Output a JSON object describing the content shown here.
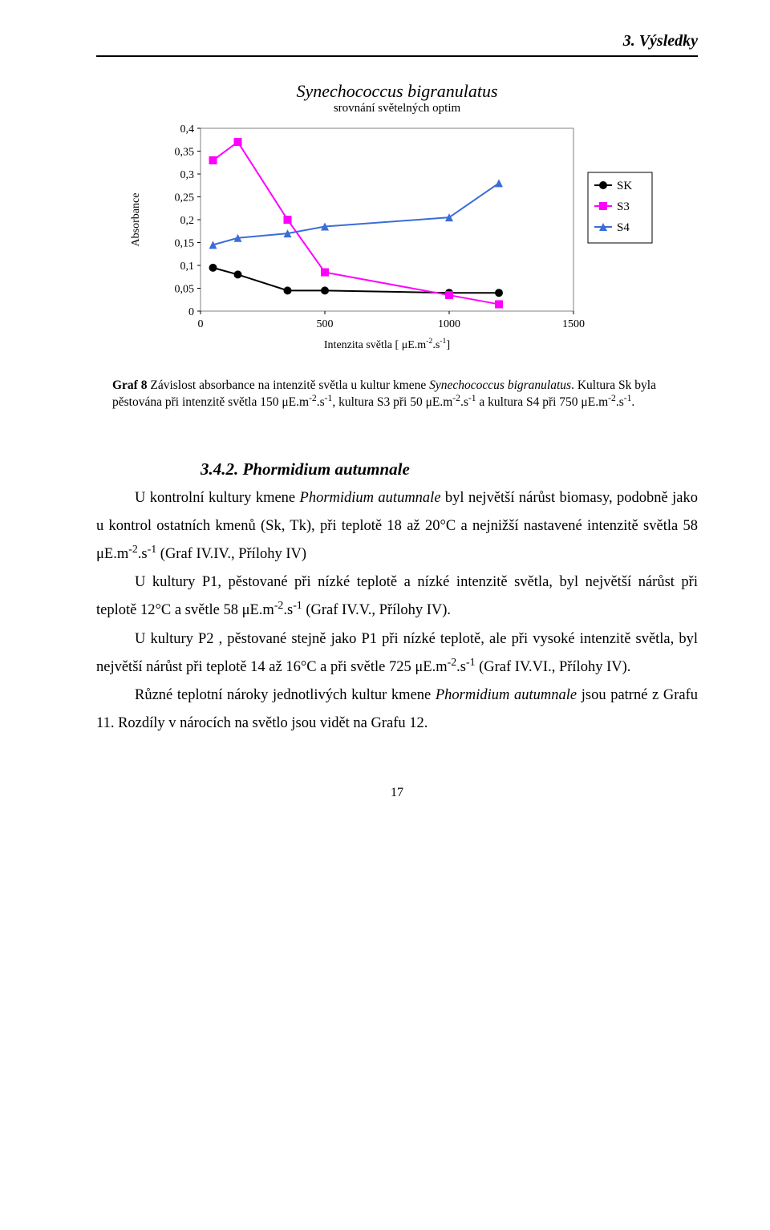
{
  "header": {
    "section": "3. Výsledky"
  },
  "chart": {
    "type": "line-scatter",
    "title": "Synechococcus bigranulatus",
    "subtitle": "srovnání světelných optim",
    "y_label": "Absorbance",
    "x_label_prefix": "Intenzita světla [ ",
    "x_label_unit": "μE.m",
    "x_label_sup": "-2",
    "x_label_unit2": ".s",
    "x_label_sup2": "-1",
    "x_label_suffix": "]",
    "xlim": [
      0,
      1500
    ],
    "ylim": [
      0,
      0.4
    ],
    "xtick_labels": [
      "0",
      "500",
      "1000",
      "1500"
    ],
    "xtick_vals": [
      0,
      500,
      1000,
      1500
    ],
    "ytick_labels": [
      "0",
      "0,05",
      "0,1",
      "0,15",
      "0,2",
      "0,25",
      "0,3",
      "0,35",
      "0,4"
    ],
    "ytick_vals": [
      0,
      0.05,
      0.1,
      0.15,
      0.2,
      0.25,
      0.3,
      0.35,
      0.4
    ],
    "background": "#ffffff",
    "border_color": "#808080",
    "plot_border_color": "#808080",
    "tick_font_size": 14,
    "axis_font_size": 14,
    "series": [
      {
        "name": "SK",
        "marker": "circle",
        "color": "#000000",
        "line_width": 2,
        "x": [
          50,
          150,
          350,
          500,
          1000,
          1200
        ],
        "y": [
          0.095,
          0.08,
          0.045,
          0.045,
          0.04,
          0.04
        ]
      },
      {
        "name": "S3",
        "marker": "square",
        "color": "#ff00ff",
        "line_width": 2,
        "x": [
          50,
          150,
          350,
          500,
          1000,
          1200
        ],
        "y": [
          0.33,
          0.37,
          0.2,
          0.085,
          0.035,
          0.015
        ]
      },
      {
        "name": "S4",
        "marker": "triangle",
        "color": "#3a6dd8",
        "line_width": 2,
        "x": [
          50,
          150,
          350,
          500,
          1000,
          1200
        ],
        "y": [
          0.145,
          0.16,
          0.17,
          0.185,
          0.205,
          0.28
        ]
      }
    ],
    "legend": {
      "items": [
        "SK",
        "S3",
        "S4"
      ],
      "font_size": 15,
      "border_color": "#000000"
    }
  },
  "caption": {
    "lead": "Graf 8",
    "text1": " Závislost absorbance na intenzitě světla u kultur kmene ",
    "taxon": "Synechococcus bigranulatus",
    "text2_a": ". Kultura Sk byla pěstována při intenzitě světla 150 μE.m",
    "sup1": "-2",
    "text2_b": ".s",
    "sup2": "-1",
    "text2_c": ", kultura S3 při 50 μE.m",
    "sup3": "-2",
    "text2_d": ".s",
    "sup4": "-1",
    "text2_e": " a kultura S4 při 750 μE.m",
    "sup5": "-2",
    "text2_f": ".s",
    "sup6": "-1",
    "text2_g": "."
  },
  "subheading": "3.4.2. Phormidium autumnale",
  "paragraphs": {
    "p1_a": "U kontrolní kultury kmene ",
    "p1_taxon": "Phormidium autumnale",
    "p1_b": " byl největší nárůst biomasy, podobně jako u kontrol ostatních kmenů (Sk, Tk), při teplotě 18 až 20°C a nejnižší nastavené intenzitě světla 58 μE.m",
    "p1_sup1": "-2",
    "p1_c": ".s",
    "p1_sup2": "-1",
    "p1_d": " (Graf IV.IV., Přílohy IV)",
    "p2_a": "U kultury P1, pěstované při nízké teplotě a nízké intenzitě světla, byl největší nárůst při teplotě 12°C a světle 58 μE.m",
    "p2_sup1": "-2",
    "p2_b": ".s",
    "p2_sup2": "-1",
    "p2_c": " (Graf IV.V., Přílohy IV).",
    "p3_a": "U kultury P2 , pěstované stejně jako P1 při nízké teplotě, ale při vysoké intenzitě světla, byl největší nárůst při teplotě 14 až 16°C a při světle 725 μE.m",
    "p3_sup1": "-2",
    "p3_b": ".s",
    "p3_sup2": "-1",
    "p3_c": " (Graf IV.VI., Přílohy IV).",
    "p4_a": "Různé teplotní nároky jednotlivých kultur kmene ",
    "p4_taxon": "Phormidium autumnale",
    "p4_b": " jsou patrné z Grafu 11. Rozdíly v nárocích na světlo jsou vidět na Grafu 12."
  },
  "page_number": "17"
}
